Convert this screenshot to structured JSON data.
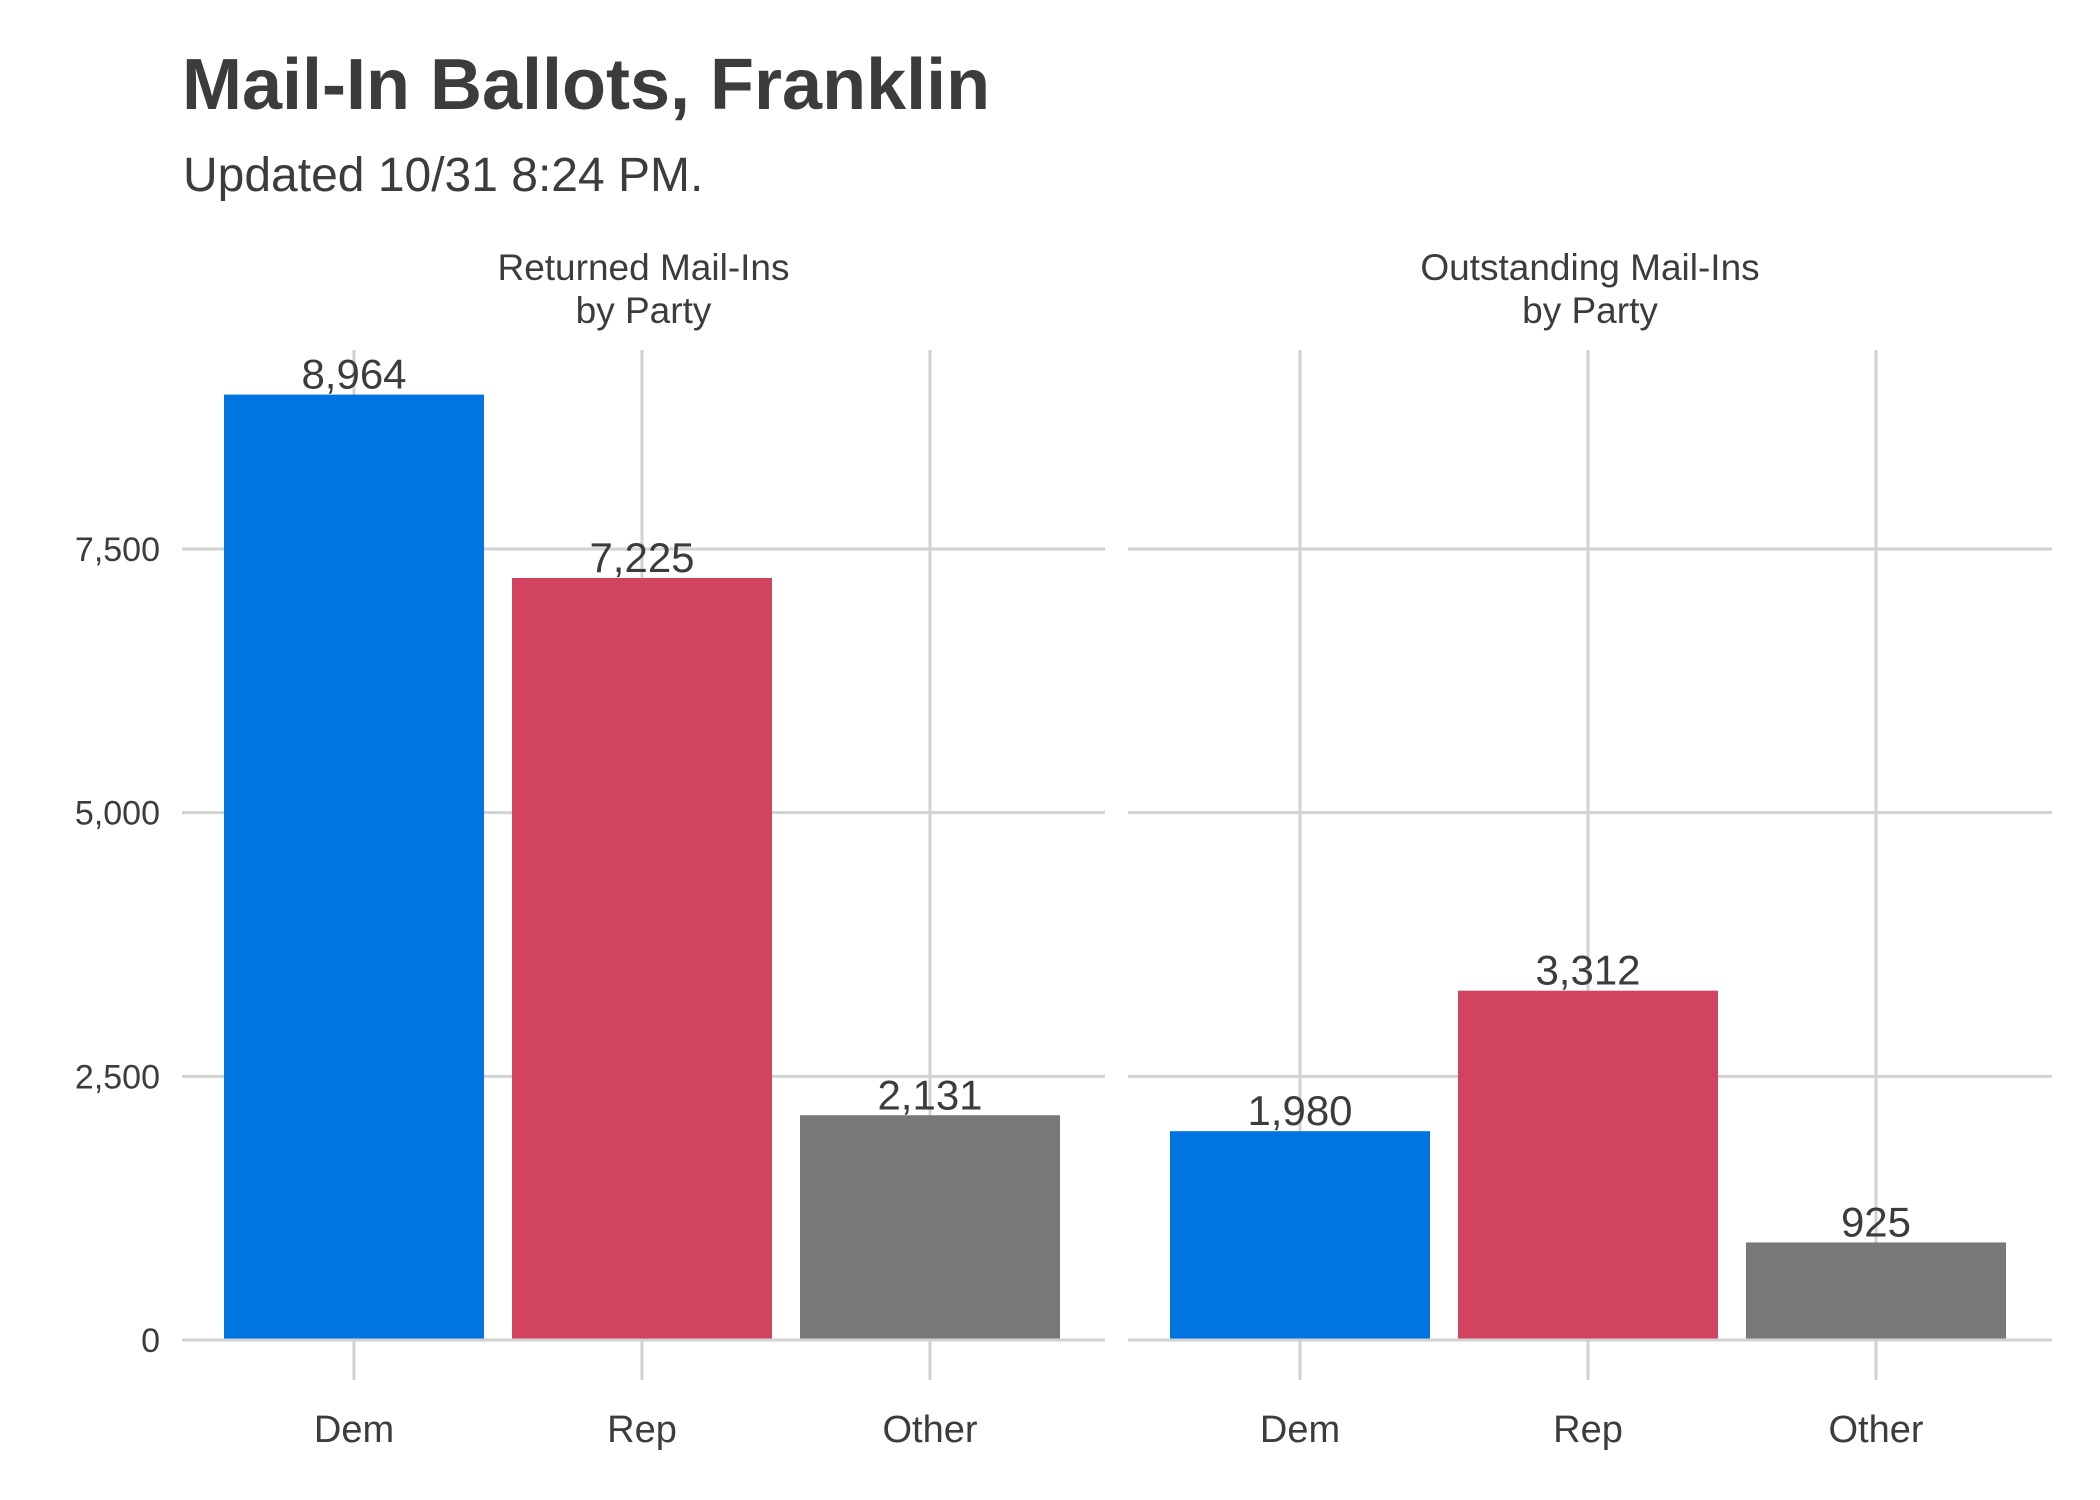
{
  "chart_data": {
    "type": "bar",
    "title": "Mail-In Ballots, Franklin",
    "subtitle": "Updated 10/31 8:24 PM.",
    "xlabel": "",
    "ylabel": "",
    "ylim": [
      0,
      9300
    ],
    "yticks": [
      0,
      2500,
      5000,
      7500
    ],
    "ytick_labels": [
      "0",
      "2,500",
      "5,000",
      "7,500"
    ],
    "categories": [
      "Dem",
      "Rep",
      "Other"
    ],
    "bar_colors": [
      "#0074e0",
      "#d1435e",
      "#787878"
    ],
    "grid": true,
    "legend": "none",
    "panels": [
      {
        "title": [
          "Returned Mail-Ins",
          "by Party"
        ],
        "values": [
          8964,
          7225,
          2131
        ],
        "value_labels": [
          "8,964",
          "7,225",
          "2,131"
        ]
      },
      {
        "title": [
          "Outstanding Mail-Ins",
          "by Party"
        ],
        "values": [
          1980,
          3312,
          925
        ],
        "value_labels": [
          "1,980",
          "3,312",
          "925"
        ]
      }
    ]
  }
}
